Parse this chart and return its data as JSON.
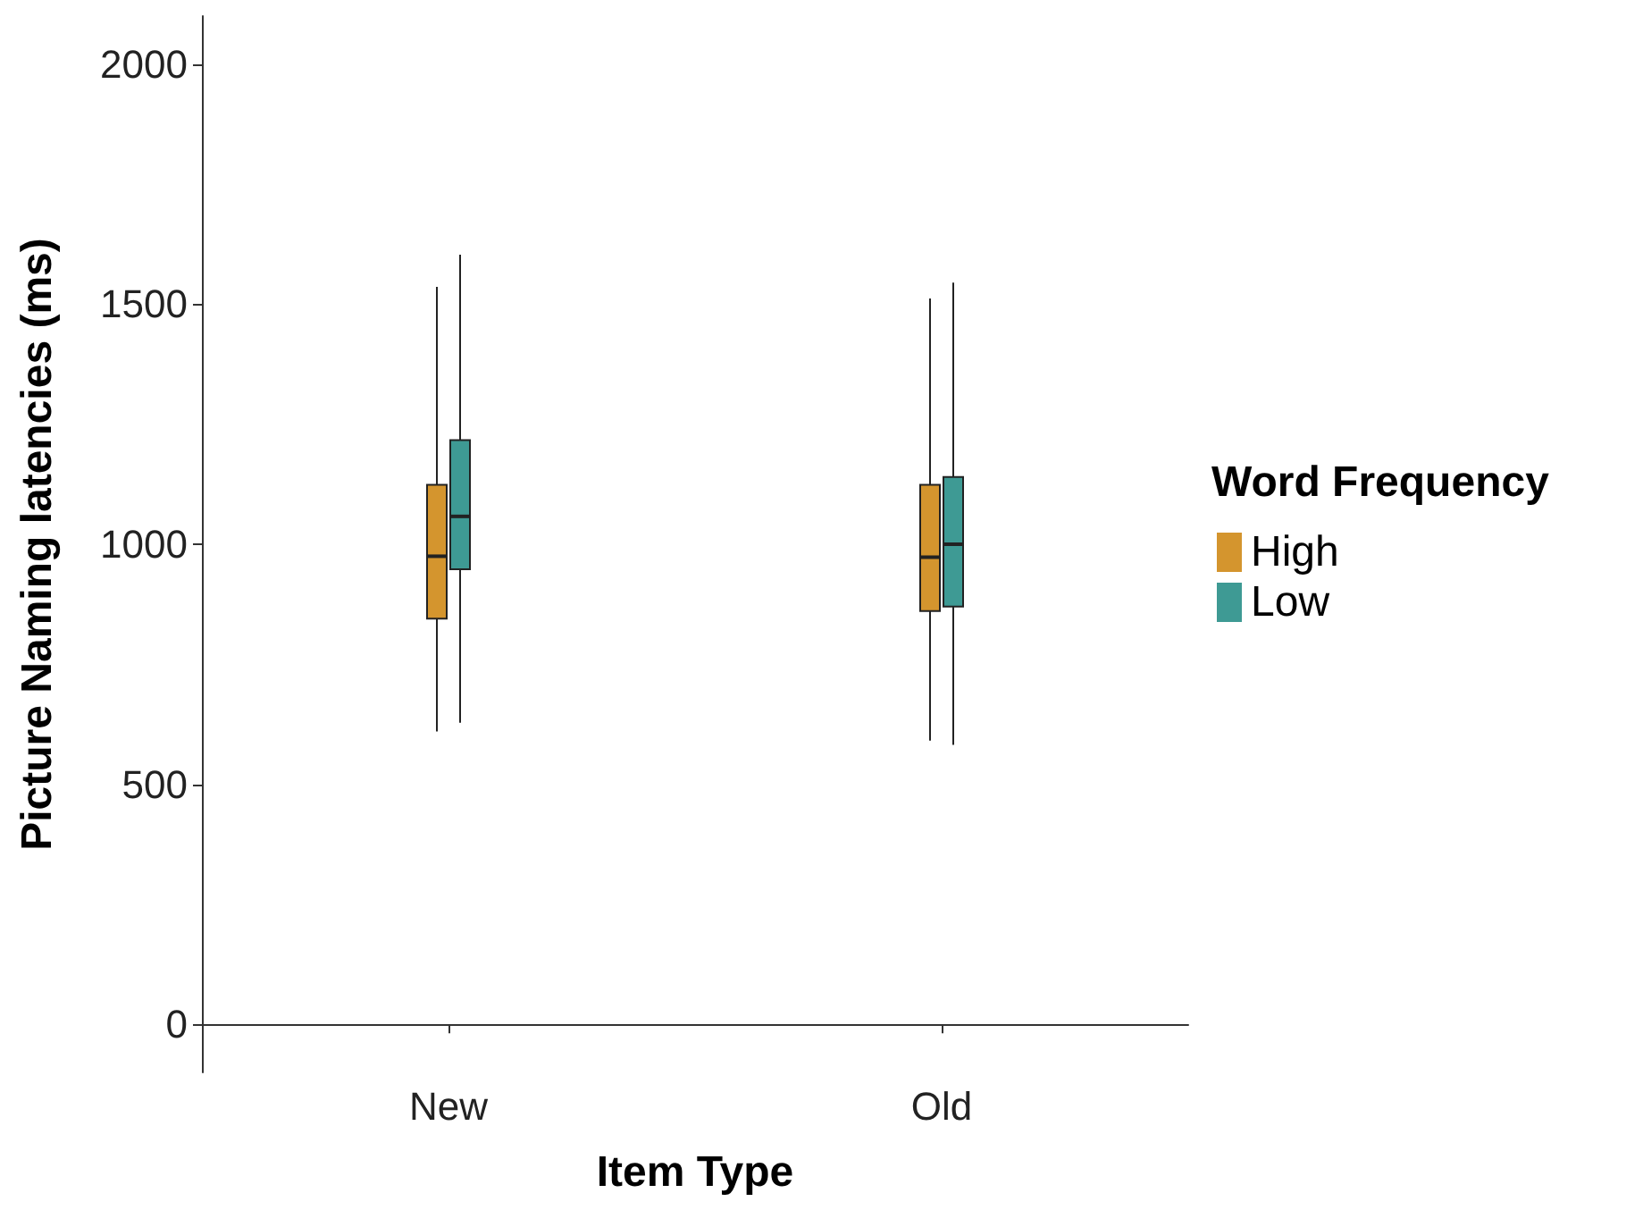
{
  "chart_data": {
    "type": "box",
    "xlabel": "Item Type",
    "ylabel": "Picture Naming latencies (ms)",
    "legend_title": "Word Frequency",
    "legend": "right",
    "grid": false,
    "categories": [
      "New",
      "Old"
    ],
    "ylim": [
      -100,
      2100
    ],
    "yticks": [
      0,
      500,
      1000,
      1500,
      2000
    ],
    "series": [
      {
        "name": "High",
        "color": "#d4952e",
        "boxes": [
          {
            "low": 610,
            "q1": 845,
            "median": 975,
            "q3": 1124,
            "high": 1536
          },
          {
            "low": 591,
            "q1": 861,
            "median": 973,
            "q3": 1124,
            "high": 1512
          }
        ]
      },
      {
        "name": "Low",
        "color": "#3e9a94",
        "boxes": [
          {
            "low": 628,
            "q1": 948,
            "median": 1058,
            "q3": 1217,
            "high": 1603
          },
          {
            "low": 582,
            "q1": 870,
            "median": 1000,
            "q3": 1140,
            "high": 1545
          }
        ]
      }
    ]
  }
}
